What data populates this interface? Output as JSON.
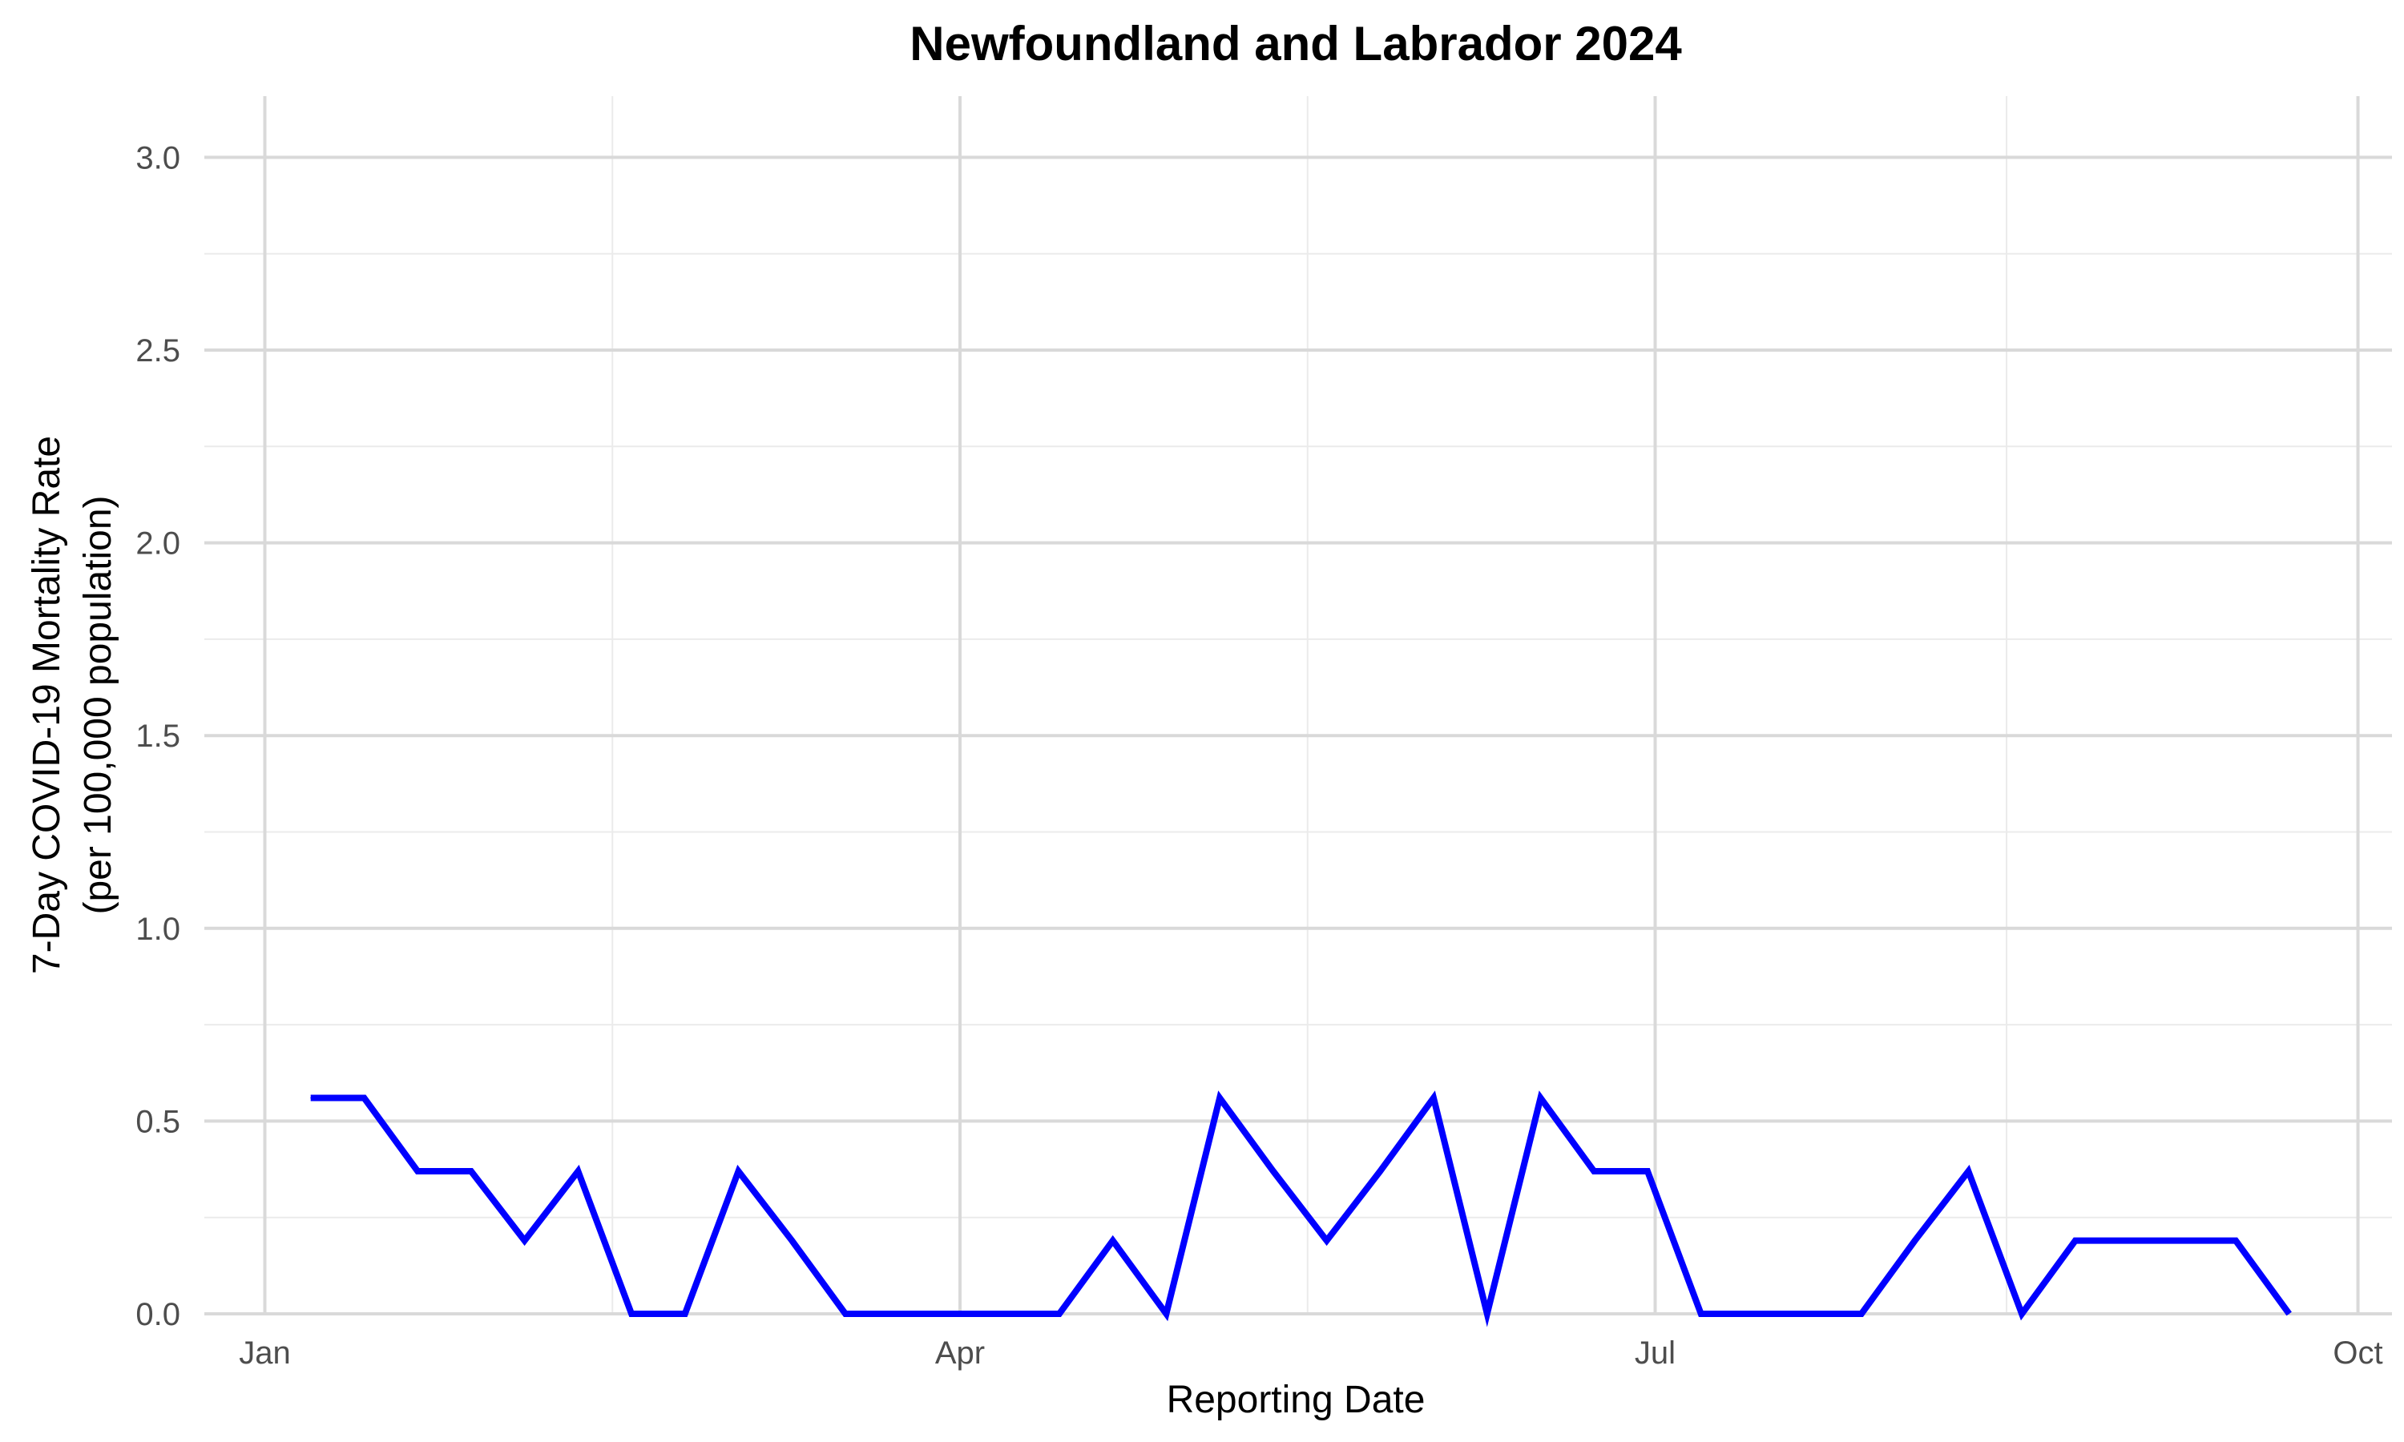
{
  "chart_data": {
    "type": "line",
    "title": "Newfoundland and Labrador 2024",
    "xlabel": "Reporting Date",
    "ylabel": [
      "7-Day COVID-19 Mortality Rate",
      "(per 100,000 population)"
    ],
    "xlim": [
      "2023-12-31",
      "2024-10-01"
    ],
    "ylim": [
      0,
      3.1
    ],
    "x_ticks": [
      {
        "date": "2024-01-01",
        "label": "Jan"
      },
      {
        "date": "2024-04-01",
        "label": "Apr"
      },
      {
        "date": "2024-07-01",
        "label": "Jul"
      },
      {
        "date": "2024-10-01",
        "label": "Oct"
      }
    ],
    "y_ticks": [
      {
        "value": 0.0,
        "label": "0.0"
      },
      {
        "value": 0.5,
        "label": "0.5"
      },
      {
        "value": 1.0,
        "label": "1.0"
      },
      {
        "value": 1.5,
        "label": "1.5"
      },
      {
        "value": 2.0,
        "label": "2.0"
      },
      {
        "value": 2.5,
        "label": "2.5"
      },
      {
        "value": 3.0,
        "label": "3.0"
      }
    ],
    "grid": true,
    "series": [
      {
        "color": "#0000ff",
        "points": [
          {
            "x": "2024-01-07",
            "y": 0.56
          },
          {
            "x": "2024-01-14",
            "y": 0.56
          },
          {
            "x": "2024-01-21",
            "y": 0.37
          },
          {
            "x": "2024-01-28",
            "y": 0.37
          },
          {
            "x": "2024-02-04",
            "y": 0.19
          },
          {
            "x": "2024-02-11",
            "y": 0.37
          },
          {
            "x": "2024-02-18",
            "y": 0.0
          },
          {
            "x": "2024-02-25",
            "y": 0.0
          },
          {
            "x": "2024-03-03",
            "y": 0.37
          },
          {
            "x": "2024-03-10",
            "y": 0.19
          },
          {
            "x": "2024-03-17",
            "y": 0.0
          },
          {
            "x": "2024-03-24",
            "y": 0.0
          },
          {
            "x": "2024-03-31",
            "y": 0.0
          },
          {
            "x": "2024-04-07",
            "y": 0.0
          },
          {
            "x": "2024-04-14",
            "y": 0.0
          },
          {
            "x": "2024-04-21",
            "y": 0.19
          },
          {
            "x": "2024-04-28",
            "y": 0.0
          },
          {
            "x": "2024-05-05",
            "y": 0.56
          },
          {
            "x": "2024-05-12",
            "y": 0.37
          },
          {
            "x": "2024-05-19",
            "y": 0.19
          },
          {
            "x": "2024-05-26",
            "y": 0.37
          },
          {
            "x": "2024-06-02",
            "y": 0.56
          },
          {
            "x": "2024-06-09",
            "y": 0.0
          },
          {
            "x": "2024-06-16",
            "y": 0.56
          },
          {
            "x": "2024-06-23",
            "y": 0.37
          },
          {
            "x": "2024-06-30",
            "y": 0.37
          },
          {
            "x": "2024-07-07",
            "y": 0.0
          },
          {
            "x": "2024-07-14",
            "y": 0.0
          },
          {
            "x": "2024-07-21",
            "y": 0.0
          },
          {
            "x": "2024-07-28",
            "y": 0.0
          },
          {
            "x": "2024-08-04",
            "y": 0.19
          },
          {
            "x": "2024-08-11",
            "y": 0.37
          },
          {
            "x": "2024-08-18",
            "y": 0.0
          },
          {
            "x": "2024-08-25",
            "y": 0.19
          },
          {
            "x": "2024-09-01",
            "y": 0.19
          },
          {
            "x": "2024-09-08",
            "y": 0.19
          },
          {
            "x": "2024-09-15",
            "y": 0.19
          },
          {
            "x": "2024-09-22",
            "y": 0.0
          }
        ]
      }
    ]
  }
}
